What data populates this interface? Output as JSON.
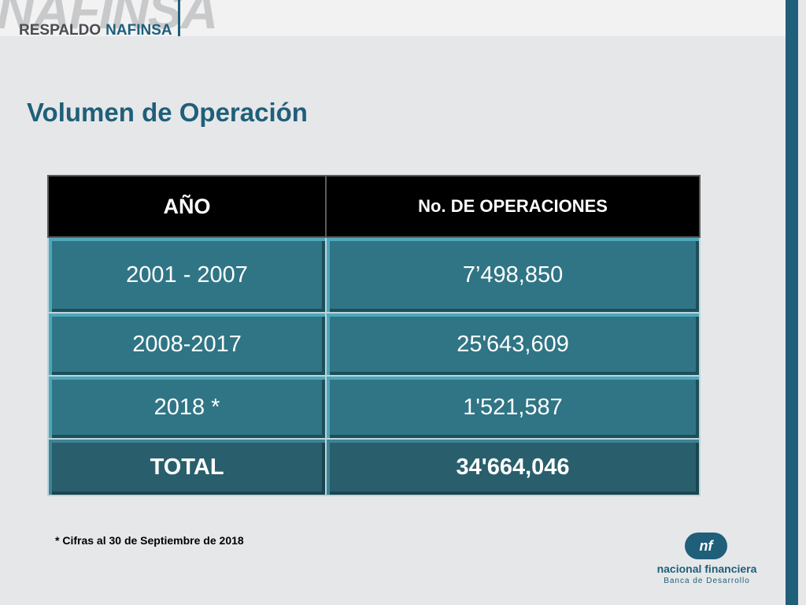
{
  "header": {
    "watermark": "NAFINSA",
    "brand_left": "RESPALDO",
    "brand_right": "NAFINSA"
  },
  "title": "Volumen de Operación",
  "table": {
    "headers": [
      "AÑO",
      "No. DE OPERACIONES"
    ],
    "rows": [
      {
        "year": "2001 - 2007",
        "ops": "7’498,850"
      },
      {
        "year": "2008-2017",
        "ops": "25'643,609"
      },
      {
        "year": "2018 *",
        "ops": "1'521,587"
      }
    ],
    "total": {
      "label": "TOTAL",
      "value": "34'664,046"
    }
  },
  "footnote": "* Cifras al 30 de Septiembre de 2018",
  "logo": {
    "mark": "nf",
    "name": "nacional financiera",
    "subtitle": "Banca de Desarrollo"
  },
  "colors": {
    "accent": "#1f5f7a",
    "cell": "#2f7585",
    "total_cell": "#295f6c",
    "header_cell": "#000000"
  }
}
